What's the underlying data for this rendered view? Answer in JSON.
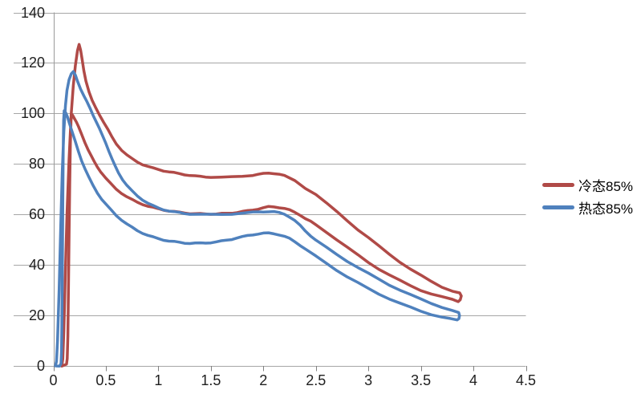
{
  "chart_data": {
    "type": "line",
    "title": "",
    "grid": true,
    "legend_position": "right",
    "x_axis": {
      "min": 0,
      "max": 4.5,
      "tick_step": 0.5,
      "ticks": [
        0,
        0.5,
        1,
        1.5,
        2,
        2.5,
        3,
        3.5,
        4,
        4.5
      ],
      "tick_labels": [
        "0",
        "0.5",
        "1",
        "1.5",
        "2",
        "2.5",
        "3",
        "3.5",
        "4",
        "4.5"
      ]
    },
    "y_axis": {
      "min": 0,
      "max": 140,
      "tick_step": 20,
      "ticks": [
        0,
        20,
        40,
        60,
        80,
        100,
        120,
        140
      ],
      "tick_labels": [
        "0",
        "20",
        "40",
        "60",
        "80",
        "100",
        "120",
        "140"
      ]
    },
    "colors": {
      "background": "#ffffff",
      "grid": "#a6a6a6",
      "axis": "#9a9a9a",
      "tick": "#808080",
      "text": "#1f1f1f"
    },
    "series": [
      {
        "id": "cold-85",
        "name": "冷态85%",
        "color": "#B04A47",
        "shape": "closed-loop",
        "peak": [
          0.245,
          127.5
        ],
        "points": [
          [
            0.08,
            0
          ],
          [
            0.09,
            3
          ],
          [
            0.1,
            14
          ],
          [
            0.115,
            38
          ],
          [
            0.13,
            60
          ],
          [
            0.15,
            82
          ],
          [
            0.17,
            100
          ],
          [
            0.19,
            111
          ],
          [
            0.21,
            119
          ],
          [
            0.23,
            125
          ],
          [
            0.245,
            127.5
          ],
          [
            0.26,
            125
          ],
          [
            0.275,
            121
          ],
          [
            0.29,
            117
          ],
          [
            0.31,
            113
          ],
          [
            0.34,
            108.5
          ],
          [
            0.37,
            105
          ],
          [
            0.4,
            102.5
          ],
          [
            0.44,
            99.5
          ],
          [
            0.48,
            96.5
          ],
          [
            0.52,
            93.5
          ],
          [
            0.56,
            90.5
          ],
          [
            0.6,
            88
          ],
          [
            0.65,
            85.5
          ],
          [
            0.7,
            83.5
          ],
          [
            0.75,
            82
          ],
          [
            0.8,
            80.8
          ],
          [
            0.85,
            79.8
          ],
          [
            0.9,
            79
          ],
          [
            0.95,
            78.3
          ],
          [
            1.0,
            77.8
          ],
          [
            1.05,
            77.3
          ],
          [
            1.1,
            76.9
          ],
          [
            1.15,
            76.5
          ],
          [
            1.2,
            76.1
          ],
          [
            1.25,
            75.8
          ],
          [
            1.3,
            75.5
          ],
          [
            1.35,
            75.2
          ],
          [
            1.4,
            75.0
          ],
          [
            1.45,
            74.9
          ],
          [
            1.5,
            74.8
          ],
          [
            1.6,
            74.7
          ],
          [
            1.7,
            74.8
          ],
          [
            1.8,
            75.1
          ],
          [
            1.9,
            75.6
          ],
          [
            1.95,
            75.9
          ],
          [
            2.0,
            76.1
          ],
          [
            2.05,
            76.3
          ],
          [
            2.1,
            76.3
          ],
          [
            2.15,
            76.0
          ],
          [
            2.2,
            75.3
          ],
          [
            2.3,
            73.3
          ],
          [
            2.4,
            70.4
          ],
          [
            2.5,
            68.0
          ],
          [
            2.6,
            64.5
          ],
          [
            2.7,
            61.0
          ],
          [
            2.8,
            57.5
          ],
          [
            2.9,
            54.0
          ],
          [
            3.0,
            50.8
          ],
          [
            3.1,
            47.4
          ],
          [
            3.2,
            44.2
          ],
          [
            3.3,
            41.2
          ],
          [
            3.4,
            38.4
          ],
          [
            3.5,
            35.8
          ],
          [
            3.6,
            33.4
          ],
          [
            3.7,
            31.3
          ],
          [
            3.8,
            29.7
          ],
          [
            3.87,
            28.8
          ],
          [
            3.885,
            27.6
          ],
          [
            3.875,
            26.3
          ],
          [
            3.855,
            25.6
          ],
          [
            3.8,
            26.3
          ],
          [
            3.7,
            27.3
          ],
          [
            3.6,
            28.5
          ],
          [
            3.5,
            30.0
          ],
          [
            3.4,
            31.8
          ],
          [
            3.3,
            33.8
          ],
          [
            3.2,
            36.0
          ],
          [
            3.1,
            38.4
          ],
          [
            3.0,
            41.0
          ],
          [
            2.9,
            43.9
          ],
          [
            2.8,
            46.9
          ],
          [
            2.7,
            50.0
          ],
          [
            2.6,
            53.0
          ],
          [
            2.5,
            55.8
          ],
          [
            2.45,
            57.2
          ],
          [
            2.4,
            58.4
          ],
          [
            2.35,
            59.8
          ],
          [
            2.3,
            60.8
          ],
          [
            2.25,
            61.7
          ],
          [
            2.2,
            62.4
          ],
          [
            2.15,
            62.8
          ],
          [
            2.1,
            63.0
          ],
          [
            2.05,
            63.0
          ],
          [
            2.0,
            62.6
          ],
          [
            1.95,
            62.2
          ],
          [
            1.9,
            61.8
          ],
          [
            1.85,
            61.4
          ],
          [
            1.8,
            61.1
          ],
          [
            1.75,
            60.8
          ],
          [
            1.7,
            60.6
          ],
          [
            1.65,
            60.4
          ],
          [
            1.6,
            60.3
          ],
          [
            1.55,
            60.2
          ],
          [
            1.5,
            60.2
          ],
          [
            1.45,
            60.2
          ],
          [
            1.4,
            60.2
          ],
          [
            1.35,
            60.3
          ],
          [
            1.3,
            60.4
          ],
          [
            1.25,
            60.6
          ],
          [
            1.2,
            60.8
          ],
          [
            1.15,
            61.1
          ],
          [
            1.1,
            61.4
          ],
          [
            1.05,
            61.8
          ],
          [
            1.0,
            62.2
          ],
          [
            0.95,
            62.7
          ],
          [
            0.9,
            63.3
          ],
          [
            0.85,
            64.0
          ],
          [
            0.8,
            64.8
          ],
          [
            0.75,
            65.8
          ],
          [
            0.7,
            67.0
          ],
          [
            0.65,
            68.4
          ],
          [
            0.6,
            70.0
          ],
          [
            0.55,
            72.0
          ],
          [
            0.5,
            74.3
          ],
          [
            0.45,
            77.0
          ],
          [
            0.42,
            78.8
          ],
          [
            0.39,
            80.8
          ],
          [
            0.36,
            83.2
          ],
          [
            0.33,
            85.8
          ],
          [
            0.3,
            88.6
          ],
          [
            0.27,
            91.6
          ],
          [
            0.24,
            94.6
          ],
          [
            0.22,
            96.6
          ],
          [
            0.2,
            98.2
          ],
          [
            0.185,
            99.2
          ],
          [
            0.175,
            99.6
          ],
          [
            0.168,
            97.0
          ],
          [
            0.162,
            88.0
          ],
          [
            0.156,
            72.0
          ],
          [
            0.15,
            52.0
          ],
          [
            0.144,
            30.0
          ],
          [
            0.138,
            12.0
          ],
          [
            0.132,
            3.0
          ],
          [
            0.125,
            0.6
          ],
          [
            0.1,
            0.1
          ],
          [
            0.08,
            0
          ]
        ]
      },
      {
        "id": "hot-85",
        "name": "热态85%",
        "color": "#4F81BD",
        "shape": "closed-loop",
        "peak": [
          0.19,
          116.5
        ],
        "points": [
          [
            0.02,
            0
          ],
          [
            0.03,
            2
          ],
          [
            0.04,
            10
          ],
          [
            0.055,
            30
          ],
          [
            0.07,
            55
          ],
          [
            0.085,
            77
          ],
          [
            0.1,
            93
          ],
          [
            0.115,
            103
          ],
          [
            0.13,
            109
          ],
          [
            0.15,
            113.5
          ],
          [
            0.17,
            115.8
          ],
          [
            0.19,
            116.5
          ],
          [
            0.21,
            115.0
          ],
          [
            0.23,
            112.8
          ],
          [
            0.26,
            109.8
          ],
          [
            0.29,
            107.0
          ],
          [
            0.32,
            104.5
          ],
          [
            0.35,
            102.0
          ],
          [
            0.38,
            99.3
          ],
          [
            0.41,
            96.6
          ],
          [
            0.44,
            93.8
          ],
          [
            0.47,
            91.0
          ],
          [
            0.5,
            88.3
          ],
          [
            0.53,
            85.0
          ],
          [
            0.56,
            81.8
          ],
          [
            0.59,
            79.0
          ],
          [
            0.62,
            76.5
          ],
          [
            0.66,
            73.8
          ],
          [
            0.7,
            71.5
          ],
          [
            0.75,
            69.2
          ],
          [
            0.8,
            67.3
          ],
          [
            0.85,
            65.8
          ],
          [
            0.9,
            64.5
          ],
          [
            0.95,
            63.4
          ],
          [
            1.0,
            62.5
          ],
          [
            1.05,
            61.9
          ],
          [
            1.1,
            61.4
          ],
          [
            1.15,
            61.0
          ],
          [
            1.2,
            60.7
          ],
          [
            1.25,
            60.4
          ],
          [
            1.3,
            60.2
          ],
          [
            1.4,
            60.0
          ],
          [
            1.5,
            59.9
          ],
          [
            1.6,
            60.0
          ],
          [
            1.7,
            60.2
          ],
          [
            1.8,
            60.5
          ],
          [
            1.9,
            60.8
          ],
          [
            1.95,
            61.0
          ],
          [
            2.0,
            61.1
          ],
          [
            2.05,
            61.1
          ],
          [
            2.1,
            61.0
          ],
          [
            2.15,
            60.7
          ],
          [
            2.2,
            60.2
          ],
          [
            2.25,
            59.0
          ],
          [
            2.3,
            57.5
          ],
          [
            2.35,
            55.6
          ],
          [
            2.4,
            53.5
          ],
          [
            2.45,
            51.6
          ],
          [
            2.5,
            49.8
          ],
          [
            2.6,
            46.9
          ],
          [
            2.7,
            44.1
          ],
          [
            2.8,
            41.5
          ],
          [
            2.9,
            39.0
          ],
          [
            3.0,
            36.6
          ],
          [
            3.1,
            34.3
          ],
          [
            3.2,
            32.1
          ],
          [
            3.3,
            30.1
          ],
          [
            3.4,
            28.2
          ],
          [
            3.5,
            26.4
          ],
          [
            3.6,
            24.8
          ],
          [
            3.7,
            23.3
          ],
          [
            3.8,
            21.9
          ],
          [
            3.86,
            21.0
          ],
          [
            3.868,
            20.0
          ],
          [
            3.862,
            18.9
          ],
          [
            3.845,
            18.2
          ],
          [
            3.78,
            18.6
          ],
          [
            3.7,
            19.3
          ],
          [
            3.6,
            20.4
          ],
          [
            3.5,
            21.7
          ],
          [
            3.4,
            23.2
          ],
          [
            3.3,
            24.8
          ],
          [
            3.2,
            26.6
          ],
          [
            3.1,
            28.5
          ],
          [
            3.0,
            30.6
          ],
          [
            2.9,
            32.9
          ],
          [
            2.8,
            35.3
          ],
          [
            2.7,
            37.9
          ],
          [
            2.6,
            40.6
          ],
          [
            2.5,
            43.4
          ],
          [
            2.4,
            46.3
          ],
          [
            2.35,
            47.8
          ],
          [
            2.3,
            49.2
          ],
          [
            2.25,
            50.4
          ],
          [
            2.2,
            51.3
          ],
          [
            2.15,
            52.0
          ],
          [
            2.1,
            52.4
          ],
          [
            2.05,
            52.6
          ],
          [
            2.0,
            52.5
          ],
          [
            1.95,
            52.3
          ],
          [
            1.9,
            52.0
          ],
          [
            1.85,
            51.6
          ],
          [
            1.8,
            51.1
          ],
          [
            1.75,
            50.7
          ],
          [
            1.7,
            50.2
          ],
          [
            1.65,
            49.8
          ],
          [
            1.6,
            49.4
          ],
          [
            1.55,
            49.1
          ],
          [
            1.5,
            48.9
          ],
          [
            1.45,
            48.7
          ],
          [
            1.4,
            48.6
          ],
          [
            1.35,
            48.6
          ],
          [
            1.3,
            48.6
          ],
          [
            1.25,
            48.7
          ],
          [
            1.2,
            48.9
          ],
          [
            1.15,
            49.2
          ],
          [
            1.1,
            49.5
          ],
          [
            1.05,
            49.9
          ],
          [
            1.0,
            50.4
          ],
          [
            0.95,
            51.0
          ],
          [
            0.9,
            51.7
          ],
          [
            0.85,
            52.6
          ],
          [
            0.8,
            53.6
          ],
          [
            0.75,
            54.8
          ],
          [
            0.7,
            56.2
          ],
          [
            0.65,
            57.8
          ],
          [
            0.6,
            59.6
          ],
          [
            0.55,
            61.7
          ],
          [
            0.5,
            64.0
          ],
          [
            0.46,
            66.1
          ],
          [
            0.42,
            68.5
          ],
          [
            0.38,
            71.3
          ],
          [
            0.34,
            74.5
          ],
          [
            0.3,
            78.2
          ],
          [
            0.27,
            81.3
          ],
          [
            0.24,
            84.8
          ],
          [
            0.21,
            88.6
          ],
          [
            0.19,
            91.3
          ],
          [
            0.17,
            94.0
          ],
          [
            0.15,
            96.6
          ],
          [
            0.135,
            98.4
          ],
          [
            0.12,
            100.0
          ],
          [
            0.11,
            100.9
          ],
          [
            0.103,
            101.2
          ],
          [
            0.098,
            97.0
          ],
          [
            0.094,
            85.0
          ],
          [
            0.09,
            65.0
          ],
          [
            0.086,
            42.0
          ],
          [
            0.082,
            20.0
          ],
          [
            0.078,
            6.0
          ],
          [
            0.073,
            1.0
          ],
          [
            0.06,
            0.1
          ],
          [
            0.03,
            0
          ]
        ]
      }
    ],
    "legend": [
      {
        "label": "冷态85%",
        "color": "#B04A47"
      },
      {
        "label": "热态85%",
        "color": "#4F81BD"
      }
    ]
  }
}
